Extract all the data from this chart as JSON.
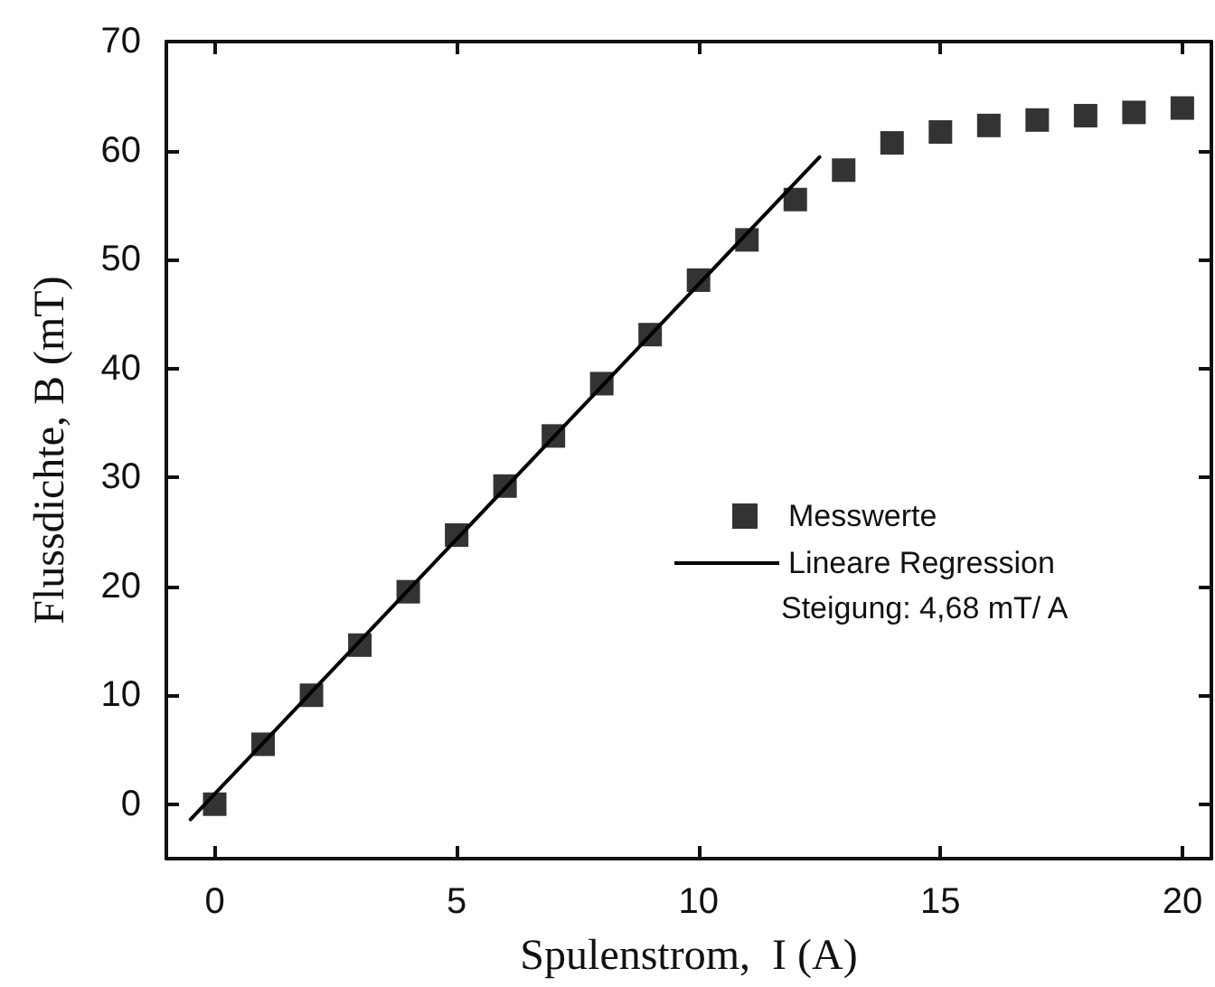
{
  "chart_data": {
    "type": "scatter",
    "xlabel": "Spulenstrom,  I (A)",
    "ylabel": "Flussdichte, B (mT)",
    "x": [
      0,
      1,
      2,
      3,
      4,
      5,
      6,
      7,
      8,
      9,
      10,
      11,
      12,
      13,
      14,
      15,
      16,
      17,
      18,
      19,
      20
    ],
    "series": [
      {
        "name": "Messwerte",
        "type": "scatter",
        "color": "#000000",
        "marker": "square",
        "values": [
          0,
          5.5,
          10.0,
          14.6,
          19.5,
          24.7,
          29.2,
          33.8,
          38.6,
          43.1,
          48.1,
          51.8,
          55.5,
          58.2,
          60.7,
          61.7,
          62.3,
          62.8,
          63.2,
          63.5,
          63.9
        ]
      },
      {
        "name": "Lineare Regression",
        "type": "line",
        "color": "#000000",
        "line_style": "solid",
        "marker": "none",
        "x": [
          -0.5,
          12.5
        ],
        "values": [
          -1.4,
          59.4
        ]
      }
    ],
    "xlim": [
      -1,
      20.6
    ],
    "xticks": [
      0,
      5,
      10,
      15,
      20
    ],
    "ylim": [
      -5,
      70
    ],
    "yticks": [
      0,
      10,
      20,
      30,
      40,
      50,
      60,
      70
    ],
    "grid": false,
    "legend": "right",
    "annotations": [
      "Steigung: 4,68 mT/ A"
    ]
  }
}
